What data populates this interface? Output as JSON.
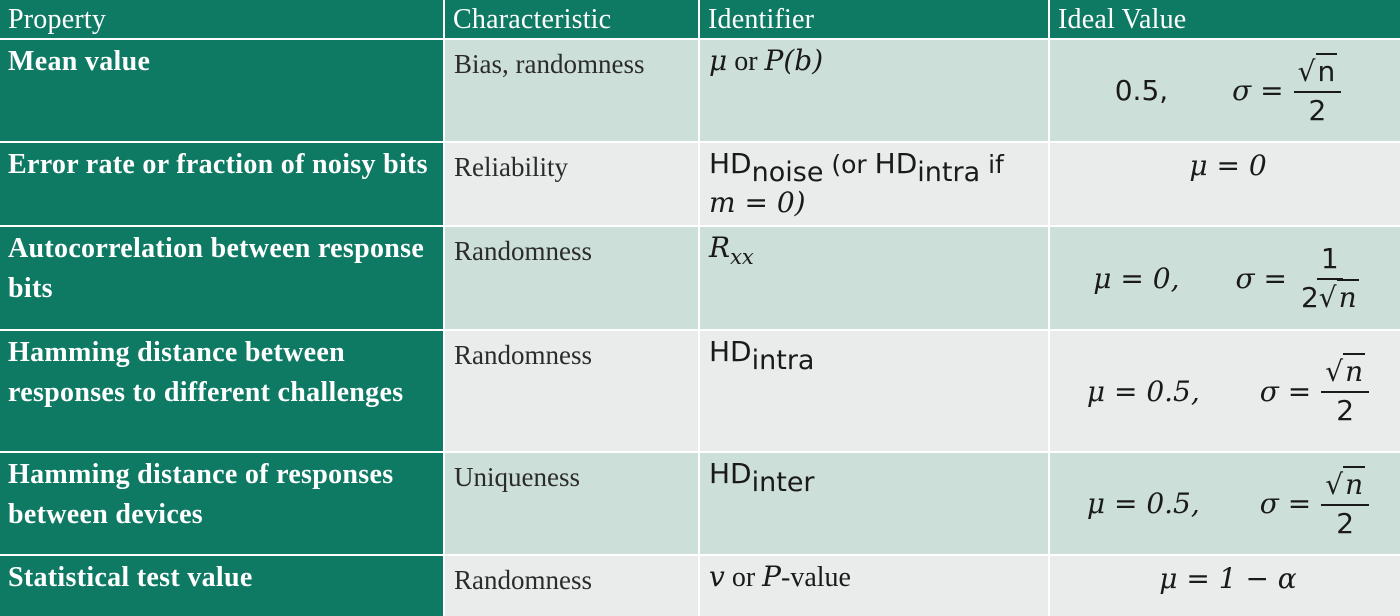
{
  "header": {
    "property": "Property",
    "characteristic": "Characteristic",
    "identifier": "Identifier",
    "ideal_value": "Ideal Value"
  },
  "rows": [
    {
      "property": "Mean value",
      "characteristic": "Bias, randomness",
      "identifier": {
        "a": "μ",
        "or": " or ",
        "b": "P(b)"
      },
      "ideal": {
        "left": "0.5,",
        "sigma": "σ =",
        "num_sym": "√",
        "num_rad": "n",
        "den": "2"
      }
    },
    {
      "property": "Error rate or fraction of  noisy bits",
      "characteristic": "Reliability",
      "identifier": {
        "hd": "HD",
        "sub": "noise",
        "mid": " (or ",
        "hd2": "HD",
        "sub2": "intra",
        "tail": " if",
        "line2": "m = 0)"
      },
      "ideal": {
        "text": "μ = 0"
      }
    },
    {
      "property": "Autocorrelation between response bits",
      "characteristic": "Randomness",
      "identifier": {
        "r": "R",
        "sub": "xx"
      },
      "ideal": {
        "left": "μ = 0,",
        "sigma": "σ =",
        "num": "1",
        "den_pre": "2",
        "den_sym": "√",
        "den_rad": "n"
      }
    },
    {
      "property": "Hamming distance between responses to different challenges",
      "characteristic": "Randomness",
      "identifier": {
        "hd": "HD",
        "sub": "intra"
      },
      "ideal": {
        "left": "μ = 0.5,",
        "sigma": "σ =",
        "num_sym": "√",
        "num_rad": "n",
        "den": "2"
      }
    },
    {
      "property": "Hamming distance of responses between devices",
      "characteristic": "Uniqueness",
      "identifier": {
        "hd": "HD",
        "sub": "inter"
      },
      "ideal": {
        "left": "μ = 0.5,",
        "sigma": "σ =",
        "num_sym": "√",
        "num_rad": "n",
        "den": "2"
      }
    },
    {
      "property": "Statistical test value",
      "characteristic": "Randomness",
      "identifier": {
        "a": "v",
        "or": " or ",
        "b": "P",
        "tail": "-value"
      },
      "ideal": {
        "text": "μ = 1 − α"
      }
    }
  ]
}
